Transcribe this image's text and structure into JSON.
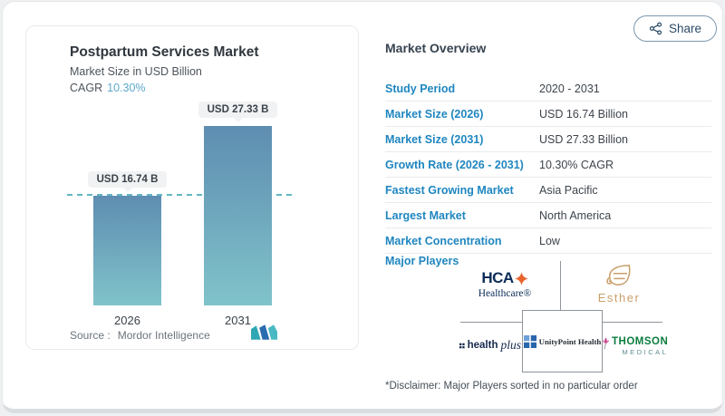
{
  "header": {
    "share_label": "Share"
  },
  "chart_card": {
    "title": "Postpartum Services Market",
    "subtitle": "Market Size in USD Billion",
    "cagr_label": "CAGR",
    "cagr_value": "10.30%",
    "source_label": "Source :",
    "source_name": "Mordor Intelligence"
  },
  "chart_data": {
    "type": "bar",
    "categories": [
      "2026",
      "2031"
    ],
    "values": [
      16.74,
      27.33
    ],
    "value_labels": [
      "USD 16.74 B",
      "USD 27.33 B"
    ],
    "unit": "USD Billion",
    "ylim": [
      0,
      27.33
    ],
    "reference_line_value": 16.74,
    "bar_color_top": "#5e8db1",
    "bar_color_bottom": "#80c3ca",
    "reference_line_color": "#62b6c2",
    "legend": "none",
    "grid": "off"
  },
  "overview": {
    "title": "Market Overview",
    "rows": [
      {
        "label": "Study Period",
        "value": "2020 - 2031"
      },
      {
        "label": "Market Size (2026)",
        "value": "USD 16.74 Billion"
      },
      {
        "label": "Market Size (2031)",
        "value": "USD 27.33 Billion"
      },
      {
        "label": "Growth Rate (2026 - 2031)",
        "value": "10.30% CAGR"
      },
      {
        "label": "Fastest Growing Market",
        "value": "Asia Pacific"
      },
      {
        "label": "Largest Market",
        "value": "North America"
      },
      {
        "label": "Market Concentration",
        "value": "Low"
      }
    ],
    "major_players_label": "Major Players",
    "players": {
      "hca": {
        "name": "HCA Healthcare",
        "line1": "HCA",
        "line2": "Healthcare®"
      },
      "esther": {
        "name": "Esther",
        "text": "Esther"
      },
      "healthplus": {
        "name": "health plus",
        "bold": "health",
        "script": "plus"
      },
      "unitypoint": {
        "name": "UnityPoint Health",
        "text": "UnityPoint Health"
      },
      "thomson": {
        "name": "Thomson Medical",
        "line1": "THOMSON",
        "line2": "MEDICAL"
      }
    },
    "disclaimer": "*Disclaimer: Major Players sorted in no particular order"
  },
  "colors": {
    "accent_blue_label": "#1f86c0",
    "cagr_accent": "#5da9cc",
    "hca_navy": "#0b2c58",
    "hca_orange": "#e8642c",
    "esther_gold": "#c9a06a",
    "unitypoint_blue": "#2a66ad",
    "thomson_green": "#0c7d3f",
    "thomson_pink": "#c2418f",
    "mordor_teal": "#2fa7b4",
    "mordor_blue": "#2a6cb0"
  }
}
